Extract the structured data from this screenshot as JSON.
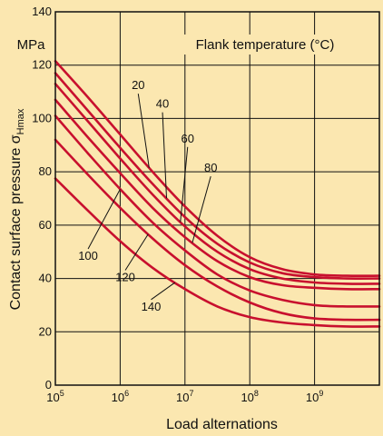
{
  "chart_data": {
    "type": "line",
    "title": "Flank temperature (°C)",
    "xlabel": "Load alternations",
    "ylabel_main": "Contact surface pressure σ",
    "ylabel_sub": "Hmax",
    "yunit": "MPa",
    "x_scale": "log",
    "xlim": [
      100000,
      10000000000
    ],
    "ylim": [
      0,
      140
    ],
    "x_ticks": [
      {
        "value": 100000,
        "base": "10",
        "exp": "5"
      },
      {
        "value": 1000000,
        "base": "10",
        "exp": "6"
      },
      {
        "value": 10000000,
        "base": "10",
        "exp": "7"
      },
      {
        "value": 100000000,
        "base": "10",
        "exp": "8"
      },
      {
        "value": 1000000000,
        "base": "10",
        "exp": "9"
      }
    ],
    "y_ticks": [
      {
        "value": 0,
        "label": "0"
      },
      {
        "value": 20,
        "label": "20"
      },
      {
        "value": 40,
        "label": "40"
      },
      {
        "value": 60,
        "label": "60"
      },
      {
        "value": 80,
        "label": "80"
      },
      {
        "value": 100,
        "label": "100"
      },
      {
        "value": 120,
        "label": "120"
      },
      {
        "value": 140,
        "label": "140"
      }
    ],
    "grid": true,
    "line_color": "#c8102e",
    "series": [
      {
        "name": "20",
        "x": [
          100000,
          316228,
          1000000,
          3162278,
          10000000,
          31622777,
          100000000,
          316227766,
          1000000000,
          3162277660,
          10000000000
        ],
        "values": [
          121.5,
          108,
          94,
          80,
          67,
          56,
          48,
          43.5,
          41.5,
          41,
          41
        ]
      },
      {
        "name": "40",
        "x": [
          100000,
          316228,
          1000000,
          3162278,
          10000000,
          31622777,
          100000000,
          316227766,
          1000000000,
          3162277660,
          10000000000
        ],
        "values": [
          117,
          103,
          89,
          75.5,
          63,
          53,
          46,
          42,
          40.5,
          40,
          40
        ]
      },
      {
        "name": "60",
        "x": [
          100000,
          316228,
          1000000,
          3162278,
          10000000,
          31622777,
          100000000,
          316227766,
          1000000000,
          3162277660,
          10000000000
        ],
        "values": [
          113,
          99,
          85,
          71.5,
          59.5,
          50,
          43.5,
          40,
          38.5,
          38,
          38
        ]
      },
      {
        "name": "80",
        "x": [
          100000,
          316228,
          1000000,
          3162278,
          10000000,
          31622777,
          100000000,
          316227766,
          1000000000,
          3162277660,
          10000000000
        ],
        "values": [
          107,
          93,
          79.5,
          66.5,
          55.5,
          46.5,
          40.5,
          37.5,
          36.5,
          36,
          36
        ]
      },
      {
        "name": "100",
        "x": [
          100000,
          316228,
          1000000,
          3162278,
          10000000,
          31622777,
          100000000,
          316227766,
          1000000000,
          3162277660,
          10000000000
        ],
        "values": [
          101,
          87,
          73.5,
          61,
          50.5,
          41.5,
          35.5,
          32,
          30,
          29.5,
          29.5
        ]
      },
      {
        "name": "120",
        "x": [
          100000,
          316228,
          1000000,
          3162278,
          10000000,
          31622777,
          100000000,
          316227766,
          1000000000,
          3162277660,
          10000000000
        ],
        "values": [
          92,
          79,
          66.5,
          55,
          45,
          37,
          31,
          27,
          25,
          24.5,
          24.5
        ]
      },
      {
        "name": "140",
        "x": [
          100000,
          316228,
          1000000,
          3162278,
          10000000,
          31622777,
          100000000,
          316227766,
          1000000000,
          3162277660,
          10000000000
        ],
        "values": [
          77.5,
          65.5,
          54,
          44,
          36,
          29.5,
          25.5,
          23.5,
          22.5,
          22,
          22
        ]
      }
    ],
    "annotations": [
      {
        "text": "20",
        "x": 1900000,
        "y": 111
      },
      {
        "text": "40",
        "x": 4500000,
        "y": 104
      },
      {
        "text": "60",
        "x": 11000000,
        "y": 91
      },
      {
        "text": "80",
        "x": 25000000,
        "y": 80
      },
      {
        "text": "100",
        "x": 320000,
        "y": 47
      },
      {
        "text": "120",
        "x": 1200000,
        "y": 39
      },
      {
        "text": "140",
        "x": 3000000,
        "y": 28
      }
    ]
  }
}
